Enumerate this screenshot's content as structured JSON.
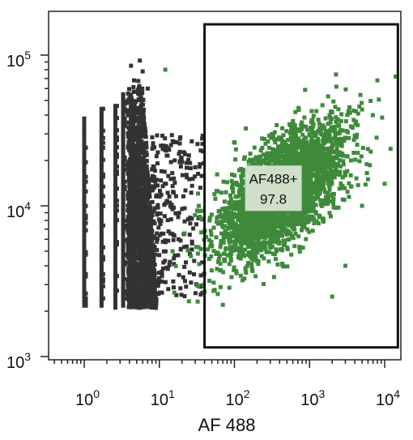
{
  "chart_data": {
    "type": "scatter",
    "title": "",
    "xlabel": "AF 488",
    "ylabel": "",
    "x_scale": "log",
    "y_scale": "log",
    "xlim": [
      0.3,
      20000
    ],
    "ylim": [
      900,
      180000
    ],
    "x_ticks": [
      {
        "base": "10",
        "exp": "0",
        "value": 1
      },
      {
        "base": "10",
        "exp": "1",
        "value": 10
      },
      {
        "base": "10",
        "exp": "2",
        "value": 100
      },
      {
        "base": "10",
        "exp": "3",
        "value": 1000
      },
      {
        "base": "10",
        "exp": "4",
        "value": 10000
      }
    ],
    "y_ticks": [
      {
        "base": "10",
        "exp": "3",
        "value": 1000
      },
      {
        "base": "10",
        "exp": "4",
        "value": 10000
      },
      {
        "base": "10",
        "exp": "5",
        "value": 100000
      }
    ],
    "grid": false,
    "series": [
      {
        "color": "#333333",
        "description_points": [
          {
            "x": 1,
            "y": 2300
          },
          {
            "x": 1,
            "y": 38000
          },
          {
            "x": 1.7,
            "y": 2200
          },
          {
            "x": 1.7,
            "y": 44000
          },
          {
            "x": 2.6,
            "y": 2200
          },
          {
            "x": 2.6,
            "y": 46000
          },
          {
            "x": 3.3,
            "y": 2100
          },
          {
            "x": 3.3,
            "y": 55000
          },
          {
            "x": 5,
            "y": 2100
          },
          {
            "x": 5,
            "y": 90000
          },
          {
            "x": 12,
            "y": 3000
          },
          {
            "x": 20,
            "y": 20000
          },
          {
            "x": 35,
            "y": 12000
          }
        ]
      },
      {
        "color": "#3e8a3a",
        "description_points": [
          {
            "x": 90,
            "y": 3000
          },
          {
            "x": 150,
            "y": 10000
          },
          {
            "x": 300,
            "y": 12000
          },
          {
            "x": 600,
            "y": 20000
          },
          {
            "x": 1000,
            "y": 30000
          },
          {
            "x": 2000,
            "y": 60000
          },
          {
            "x": 8000,
            "y": 70000
          },
          {
            "x": 15000,
            "y": 75000
          }
        ]
      }
    ],
    "gate": {
      "label": "AF488+",
      "value": "97.8",
      "x_range": [
        40,
        15000
      ],
      "y_range": [
        1150,
        160000
      ]
    },
    "colors": {
      "axis": "#222222",
      "gate_border": "#111111",
      "gate_label_bg": "#dfe8da"
    }
  }
}
